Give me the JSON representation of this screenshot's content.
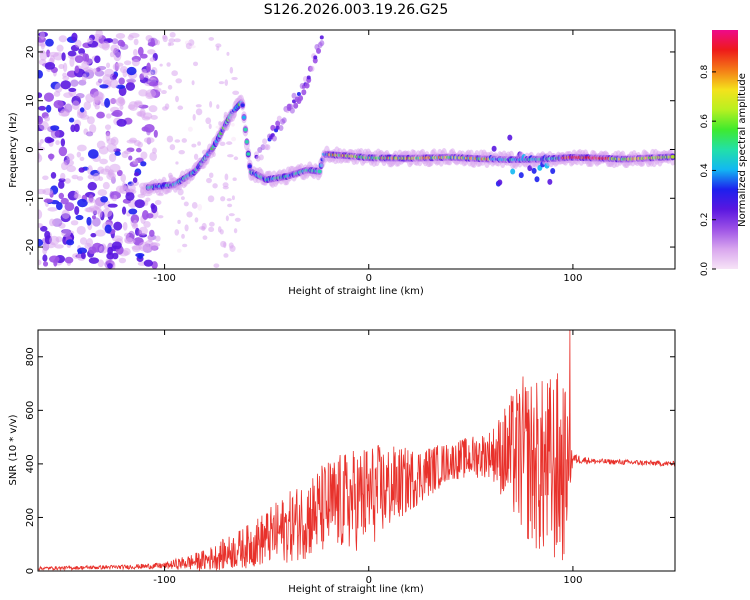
{
  "title": "S126.2026.003.19.26.G25",
  "colors": {
    "snr_line": "#e8312b",
    "spectrogram_bg": "#ffffff",
    "axis": "#000000",
    "colormap": [
      "#f7e4f7",
      "#d9a6ee",
      "#9d52e6",
      "#5a17e0",
      "#1d20ee",
      "#12b8f2",
      "#22e0a8",
      "#3fea2e",
      "#b8f020",
      "#f4e21c",
      "#f47a17",
      "#ee1a1a",
      "#ee0a8a"
    ]
  },
  "chart_data": [
    {
      "type": "heatmap",
      "name": "spectrogram",
      "title": "S126.2026.003.19.26.G25",
      "xlabel": "Height of straight line (km)",
      "ylabel": "Frequency (Hz)",
      "xlim": [
        -162,
        150
      ],
      "ylim": [
        -24.5,
        24.5
      ],
      "xticks": [
        -100,
        0,
        100
      ],
      "xtick_labels": [
        "-100",
        "0",
        "100"
      ],
      "yticks": [
        -20,
        -10,
        0,
        10,
        20
      ],
      "ytick_labels": [
        "-20",
        "-10",
        "0",
        "10",
        "20"
      ],
      "colorbar": {
        "label": "Normalized spectral amplitude",
        "range": [
          0.0,
          0.97
        ],
        "ticks": [
          0.0,
          0.2,
          0.4,
          0.6,
          0.8
        ],
        "tick_labels": [
          "0.0",
          "0.2",
          "0.4",
          "0.6",
          "0.8"
        ]
      },
      "ridge": {
        "description": "frequency of the dominant spectral line vs height",
        "points": [
          [
            -108,
            -7.8
          ],
          [
            -95,
            -7.2
          ],
          [
            -85,
            -4.5
          ],
          [
            -76,
            0.5
          ],
          [
            -67,
            7.5
          ],
          [
            -62,
            9.8
          ],
          [
            -58,
            -4.5
          ],
          [
            -50,
            -6.2
          ],
          [
            -40,
            -5.5
          ],
          [
            -30,
            -4.2
          ],
          [
            -24,
            -4.5
          ],
          [
            -22,
            -1.0
          ],
          [
            -10,
            -1.3
          ],
          [
            0,
            -1.7
          ],
          [
            20,
            -1.8
          ],
          [
            40,
            -1.6
          ],
          [
            55,
            -1.9
          ],
          [
            70,
            -2.1
          ],
          [
            85,
            -2.0
          ],
          [
            100,
            -1.6
          ],
          [
            115,
            -1.8
          ],
          [
            125,
            -2.0
          ],
          [
            149,
            -1.5
          ]
        ],
        "secondary_points": [
          [
            -55,
            -1.5
          ],
          [
            -46,
            3.5
          ],
          [
            -38,
            9.0
          ],
          [
            -30,
            14.0
          ],
          [
            -23,
            23.0
          ]
        ]
      }
    },
    {
      "type": "line",
      "name": "snr",
      "xlabel": "Height of straight line (km)",
      "ylabel": "SNR (10 * v/v)",
      "xlim": [
        -162,
        150
      ],
      "ylim": [
        0,
        900
      ],
      "xticks": [
        -100,
        0,
        100
      ],
      "xtick_labels": [
        "-100",
        "0",
        "100"
      ],
      "yticks": [
        0,
        200,
        400,
        600,
        800
      ],
      "ytick_labels": [
        "0",
        "200",
        "400",
        "600",
        "800"
      ],
      "envelope": {
        "x": [
          -162,
          -120,
          -100,
          -80,
          -60,
          -40,
          -20,
          0,
          20,
          40,
          60,
          75,
          85,
          95,
          100,
          110,
          130,
          150
        ],
        "mean": [
          10,
          15,
          20,
          40,
          90,
          160,
          240,
          280,
          340,
          410,
          440,
          430,
          380,
          380,
          420,
          410,
          405,
          400
        ],
        "amplitude": [
          6,
          8,
          12,
          40,
          80,
          130,
          180,
          200,
          120,
          70,
          90,
          300,
          340,
          380,
          20,
          10,
          10,
          10
        ]
      },
      "peak": {
        "x": 98.5,
        "y": 900
      }
    }
  ]
}
